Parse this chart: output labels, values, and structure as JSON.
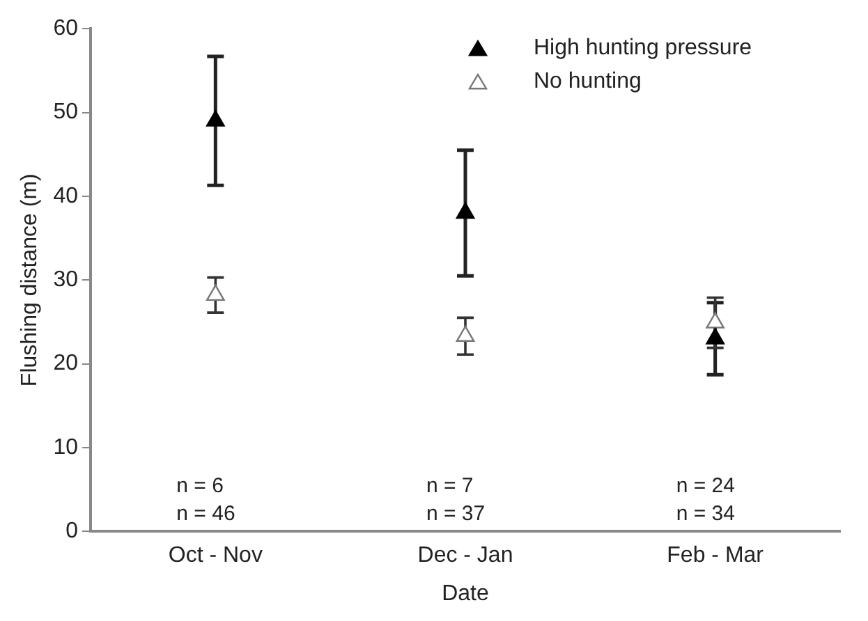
{
  "chart_data": {
    "type": "scatter",
    "xlabel": "Date",
    "ylabel": "Flushing distance (m)",
    "categories": [
      "Oct - Nov",
      "Dec - Jan",
      "Feb - Mar"
    ],
    "series": [
      {
        "name": "High hunting pressure",
        "color": "#000000",
        "values": [
          49,
          38,
          23
        ],
        "errors": [
          7.7,
          7.5,
          4.3
        ],
        "marker": "triangle"
      },
      {
        "name": "No hunting",
        "color": "#ffffff",
        "values": [
          28.2,
          23.3,
          24.9
        ],
        "errors": [
          2.1,
          2.2,
          3
        ]
      }
    ],
    "ylim": [
      0,
      60
    ],
    "yticks": [
      0,
      10,
      20,
      30,
      40,
      50,
      60
    ],
    "grid": false,
    "legend": "top right",
    "marker": "triangle",
    "annotations": [
      "n = 6",
      "n = 46",
      "n = 7",
      "n = 37",
      "n = 24",
      "n = 34"
    ]
  }
}
